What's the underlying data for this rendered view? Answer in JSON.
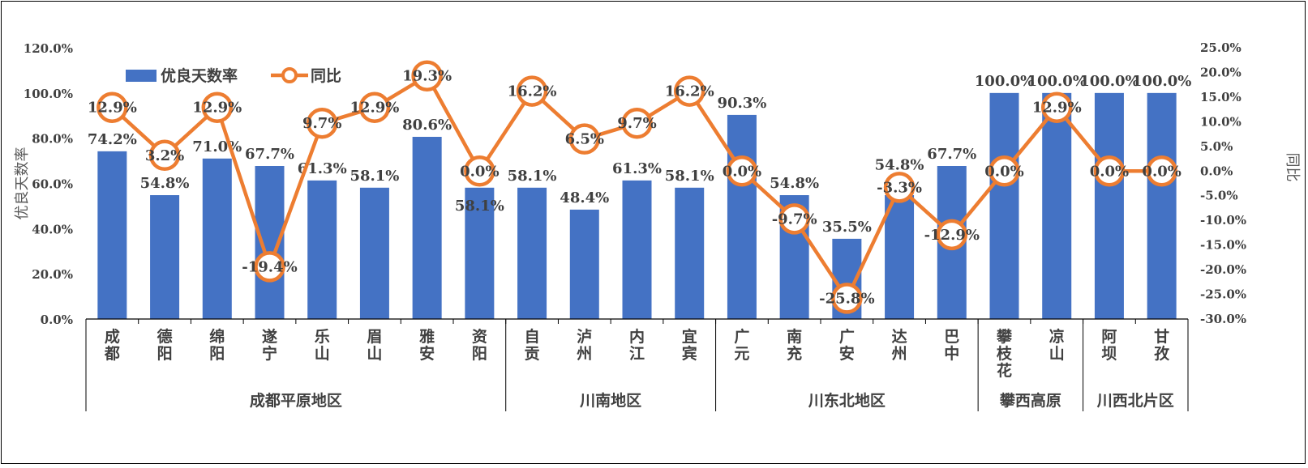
{
  "chart_data": {
    "type": "bar",
    "categories": [
      "成都",
      "德阳",
      "绵阳",
      "遂宁",
      "乐山",
      "眉山",
      "雅安",
      "资阳",
      "自贡",
      "泸州",
      "内江",
      "宜宾",
      "广元",
      "南充",
      "广安",
      "达州",
      "巴中",
      "攀枝花",
      "凉山",
      "阿坝",
      "甘孜"
    ],
    "category_labels": [
      "成\n都",
      "德\n阳",
      "绵\n阳",
      "遂\n宁",
      "乐\n山",
      "眉\n山",
      "雅\n安",
      "资\n阳",
      "自\n贡",
      "泸\n州",
      "内\n江",
      "宜\n宾",
      "广\n元",
      "南\n充",
      "广\n安",
      "达\n州",
      "巴\n中",
      "攀\n枝\n花",
      "凉\n山",
      "阿\n坝",
      "甘\n孜"
    ],
    "groups": [
      {
        "name": "成都平原地区",
        "start": 0,
        "end": 7
      },
      {
        "name": "川南地区",
        "start": 8,
        "end": 11
      },
      {
        "name": "川东北地区",
        "start": 12,
        "end": 16
      },
      {
        "name": "攀西高原",
        "start": 17,
        "end": 18
      },
      {
        "name": "川西北片区",
        "start": 19,
        "end": 20
      }
    ],
    "series": [
      {
        "name": "优良天数率",
        "type": "bar",
        "axis": "left",
        "color": "#4472C4",
        "values": [
          74.2,
          54.8,
          71.0,
          67.7,
          61.3,
          58.1,
          80.6,
          58.1,
          58.1,
          48.4,
          61.3,
          58.1,
          90.3,
          54.8,
          35.5,
          54.8,
          67.7,
          100.0,
          100.0,
          100.0,
          100.0
        ],
        "labels": [
          "74.2%",
          "54.8%",
          "71.0%",
          "67.7%",
          "61.3%",
          "58.1%",
          "80.6%",
          "58.1%",
          "58.1%",
          "48.4%",
          "61.3%",
          "58.1%",
          "90.3%",
          "54.8%",
          "35.5%",
          "54.8%",
          "67.7%",
          "100.0%",
          "100.0%",
          "100.0%",
          "100.0%"
        ]
      },
      {
        "name": "同比",
        "type": "line",
        "axis": "right",
        "color": "#ED7D31",
        "values": [
          12.9,
          3.2,
          12.9,
          -19.4,
          9.7,
          12.9,
          19.3,
          0.0,
          16.2,
          6.5,
          9.7,
          16.2,
          0.0,
          -9.7,
          -25.8,
          -3.3,
          -12.9,
          0.0,
          12.9,
          0.0,
          0.0
        ],
        "labels": [
          "12.9%",
          "3.2%",
          "12.9%",
          "-19.4%",
          "9.7%",
          "12.9%",
          "19.3%",
          "0.0%",
          "16.2%",
          "6.5%",
          "9.7%",
          "16.2%",
          "0.0%",
          "-9.7%",
          "-25.8%",
          "-3.3%",
          "-12.9%",
          "0.0%",
          "12.9%",
          "0.0%",
          "0.0%"
        ]
      }
    ],
    "ylabel": "优良天数率",
    "y2label": "同比",
    "ylim": [
      0,
      120
    ],
    "y2lim": [
      -30,
      25
    ],
    "yticks": [
      0,
      20,
      40,
      60,
      80,
      100,
      120
    ],
    "ytick_labels": [
      "0.0%",
      "20.0%",
      "40.0%",
      "60.0%",
      "80.0%",
      "100.0%",
      "120.0%"
    ],
    "y2ticks": [
      -30,
      -25,
      -20,
      -15,
      -10,
      -5,
      0,
      5,
      10,
      15,
      20,
      25
    ],
    "y2tick_labels": [
      "-30.0%",
      "-25.0%",
      "-20.0%",
      "-15.0%",
      "-10.0%",
      "-5.0%",
      "0.0%",
      "5.0%",
      "10.0%",
      "15.0%",
      "20.0%",
      "25.0%"
    ],
    "legend_position": "top-left",
    "grid": false
  }
}
